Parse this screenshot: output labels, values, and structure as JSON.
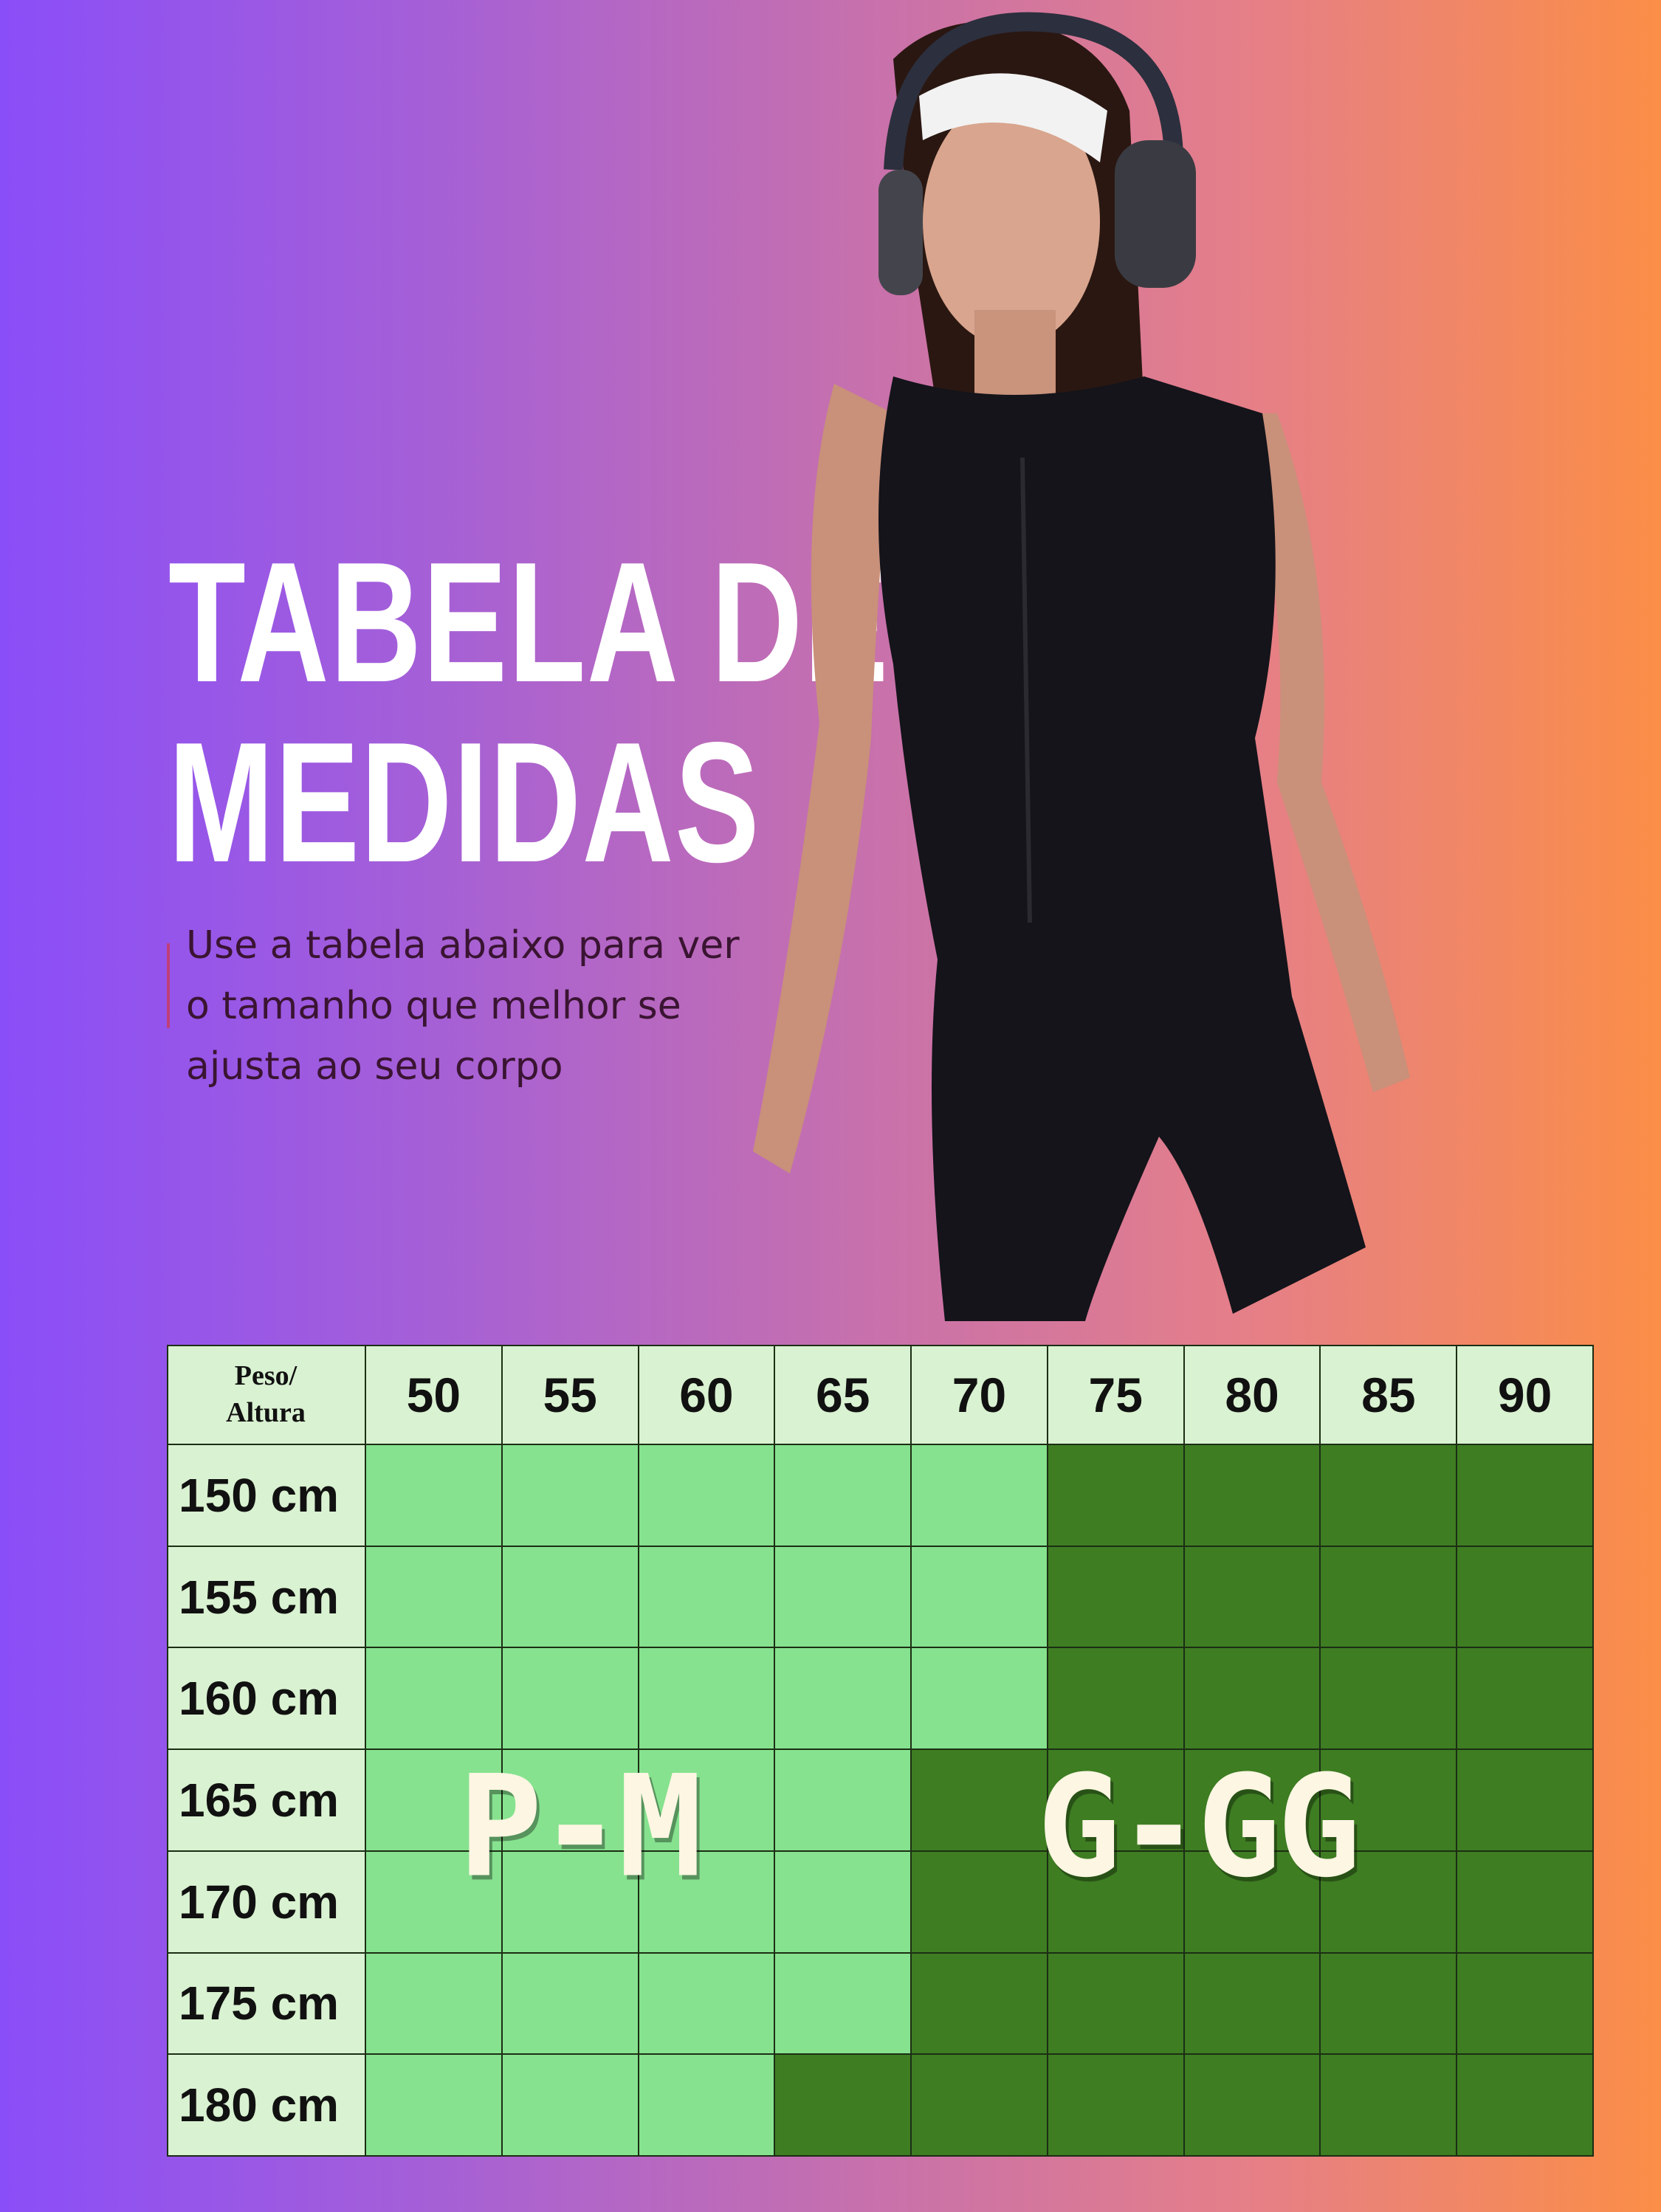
{
  "title": {
    "line1": "TABELA DE",
    "line2": "MEDIDAS"
  },
  "subtitle": "Use a tabela abaixo para ver o tamanho que melhor se ajusta ao seu corpo",
  "table": {
    "corner_label": "Peso/ Altura",
    "weights": [
      "50",
      "55",
      "60",
      "65",
      "70",
      "75",
      "80",
      "85",
      "90"
    ],
    "rows": [
      {
        "height": "150 cm",
        "sizes": [
          "P-M",
          "P-M",
          "P-M",
          "P-M",
          "P-M",
          "G-GG",
          "G-GG",
          "G-GG",
          "G-GG"
        ]
      },
      {
        "height": "155 cm",
        "sizes": [
          "P-M",
          "P-M",
          "P-M",
          "P-M",
          "P-M",
          "G-GG",
          "G-GG",
          "G-GG",
          "G-GG"
        ]
      },
      {
        "height": "160 cm",
        "sizes": [
          "P-M",
          "P-M",
          "P-M",
          "P-M",
          "P-M",
          "G-GG",
          "G-GG",
          "G-GG",
          "G-GG"
        ]
      },
      {
        "height": "165 cm",
        "sizes": [
          "P-M",
          "P-M",
          "P-M",
          "P-M",
          "G-GG",
          "G-GG",
          "G-GG",
          "G-GG",
          "G-GG"
        ]
      },
      {
        "height": "170 cm",
        "sizes": [
          "P-M",
          "P-M",
          "P-M",
          "P-M",
          "G-GG",
          "G-GG",
          "G-GG",
          "G-GG",
          "G-GG"
        ]
      },
      {
        "height": "175 cm",
        "sizes": [
          "P-M",
          "P-M",
          "P-M",
          "P-M",
          "G-GG",
          "G-GG",
          "G-GG",
          "G-GG",
          "G-GG"
        ]
      },
      {
        "height": "180 cm",
        "sizes": [
          "P-M",
          "P-M",
          "P-M",
          "G-GG",
          "G-GG",
          "G-GG",
          "G-GG",
          "G-GG",
          "G-GG"
        ]
      }
    ],
    "size_labels": {
      "small": "P-M",
      "large": "G-GG"
    },
    "colors": {
      "P-M": "#86e28f",
      "G-GG": "#3e7d22",
      "header": "#d9f2d1"
    }
  }
}
